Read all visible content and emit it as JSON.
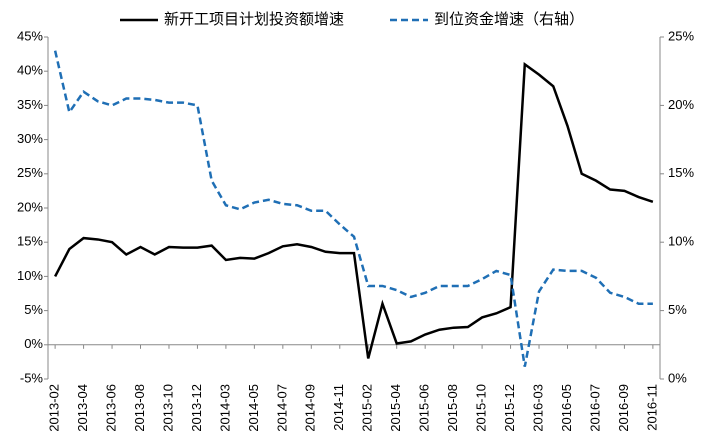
{
  "chart_data": {
    "type": "line",
    "categories": [
      "2013-02",
      null,
      "2013-04",
      null,
      "2013-06",
      null,
      "2013-08",
      null,
      "2013-10",
      null,
      "2013-12",
      null,
      "2014-03",
      null,
      "2014-05",
      null,
      "2014-07",
      null,
      "2014-09",
      null,
      "2014-11",
      null,
      "2015-02",
      null,
      "2015-04",
      null,
      "2015-06",
      null,
      "2015-08",
      null,
      "2015-10",
      null,
      "2015-12",
      null,
      "2016-03",
      null,
      "2016-05",
      null,
      "2016-07",
      null,
      "2016-09",
      null,
      "2016-11"
    ],
    "series": [
      {
        "name": "新开工项目计划投资额增速",
        "color": "#000000",
        "dash": false,
        "values": [
          10,
          14,
          15.6,
          15.4,
          15,
          13.2,
          14.3,
          13.2,
          14.3,
          14.2,
          14.2,
          14.5,
          12.4,
          12.7,
          12.6,
          13.4,
          14.4,
          14.7,
          14.3,
          13.6,
          13.4,
          13.4,
          -2,
          6,
          0.2,
          0.5,
          1.5,
          2.2,
          2.5,
          2.6,
          4,
          4.6,
          5.5,
          41,
          39.5,
          37.8,
          32,
          25,
          24,
          22.7,
          22.5,
          21.6,
          20.9
        ]
      },
      {
        "name": "到位资金增速（右轴）",
        "color": "#1f6fb5",
        "dash": true,
        "axis": "y2",
        "values": [
          24,
          19.5,
          21,
          20.3,
          20,
          20.5,
          20.5,
          20.4,
          20.2,
          20.2,
          20,
          14.5,
          12.7,
          12.4,
          12.9,
          13.1,
          12.8,
          12.7,
          12.3,
          12.3,
          11.3,
          10.4,
          6.8,
          6.8,
          6.5,
          6,
          6.3,
          6.8,
          6.8,
          6.8,
          7.3,
          7.9,
          7.6,
          0.9,
          6.4,
          8,
          7.9,
          7.9,
          7.4,
          6.3,
          6,
          5.5,
          5.5
        ]
      }
    ],
    "ylim": [
      -5,
      45
    ],
    "yticks": [
      {
        "value": -5,
        "label": "-5%"
      },
      {
        "value": 0,
        "label": "0%"
      },
      {
        "value": 5,
        "label": "5%"
      },
      {
        "value": 10,
        "label": "10%"
      },
      {
        "value": 15,
        "label": "15%"
      },
      {
        "value": 20,
        "label": "20%"
      },
      {
        "value": 25,
        "label": "25%"
      },
      {
        "value": 30,
        "label": "30%"
      },
      {
        "value": 35,
        "label": "35%"
      },
      {
        "value": 40,
        "label": "40%"
      },
      {
        "value": 45,
        "label": "45%"
      }
    ],
    "y2lim": [
      0,
      25
    ],
    "y2ticks": [
      {
        "value": 0,
        "label": "0%"
      },
      {
        "value": 5,
        "label": "5%"
      },
      {
        "value": 10,
        "label": "10%"
      },
      {
        "value": 15,
        "label": "15%"
      },
      {
        "value": 20,
        "label": "20%"
      },
      {
        "value": 25,
        "label": "25%"
      }
    ],
    "grid": false,
    "legend": "top"
  }
}
